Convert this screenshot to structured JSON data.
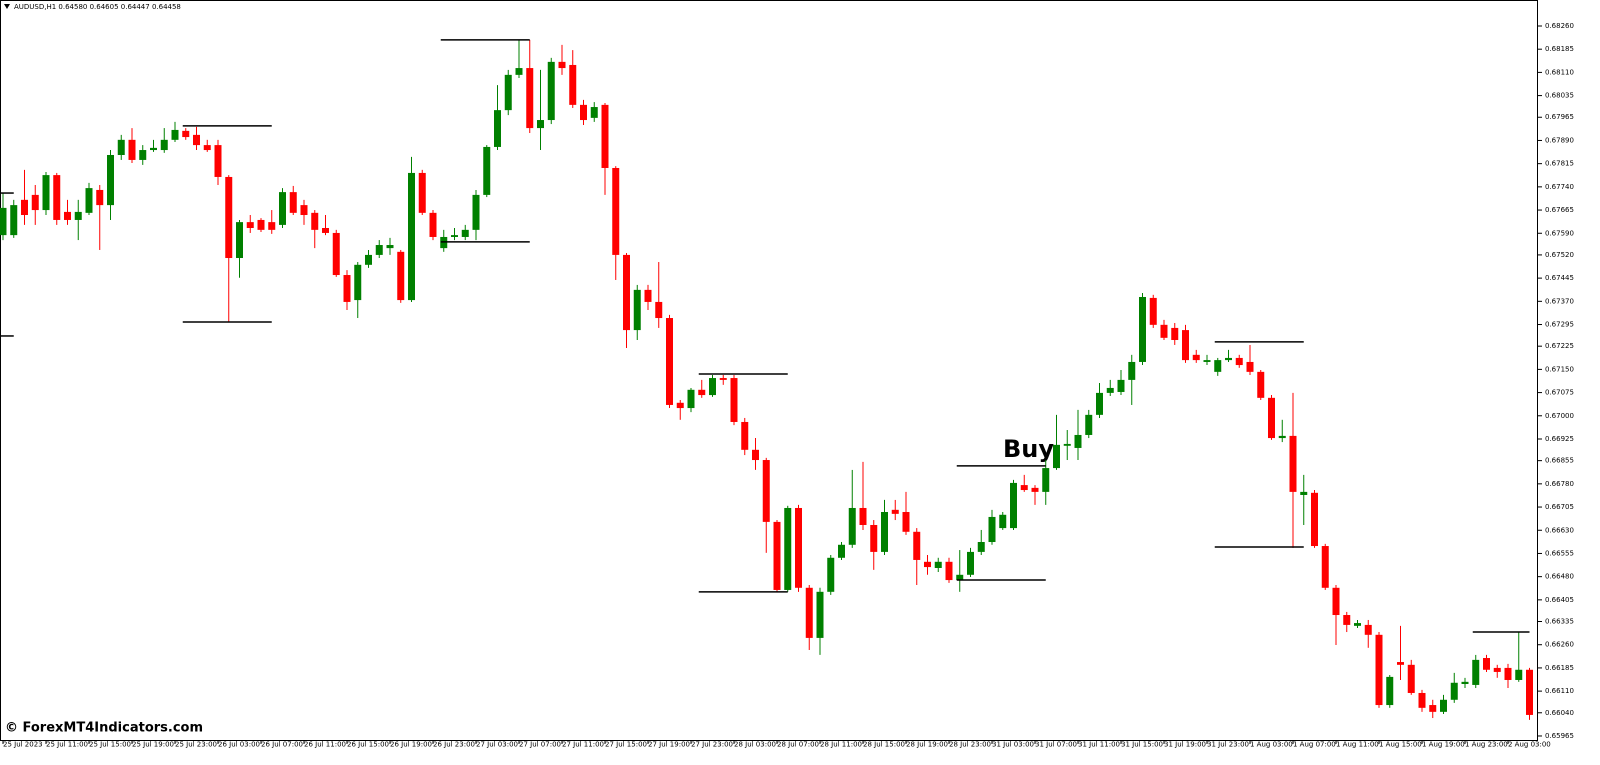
{
  "chart_data": {
    "type": "candlestick",
    "title": "AUDUSD,H1  0.64580 0.64605 0.64447 0.64458",
    "annotation": "Buy",
    "watermark": "© ForexMT4Indicators.com",
    "up_color": "#008000",
    "down_color": "#ff0000",
    "level_color": "#000000",
    "grid": false,
    "categories": [
      "25 Jul 2023",
      null,
      null,
      null,
      "25 Jul 11:00",
      null,
      null,
      null,
      "25 Jul 15:00",
      null,
      null,
      null,
      "25 Jul 19:00",
      null,
      null,
      null,
      "25 Jul 23:00",
      null,
      null,
      null,
      "26 Jul 03:00",
      null,
      null,
      null,
      "26 Jul 07:00",
      null,
      null,
      null,
      "26 Jul 11:00",
      null,
      null,
      null,
      "26 Jul 15:00",
      null,
      null,
      null,
      "26 Jul 19:00",
      null,
      null,
      null,
      "26 Jul 23:00",
      null,
      null,
      null,
      "27 Jul 03:00",
      null,
      null,
      null,
      "27 Jul 07:00",
      null,
      null,
      null,
      "27 Jul 11:00",
      null,
      null,
      null,
      "27 Jul 15:00",
      null,
      null,
      null,
      "27 Jul 19:00",
      null,
      null,
      null,
      "27 Jul 23:00",
      null,
      null,
      null,
      "28 Jul 03:00",
      null,
      null,
      null,
      "28 Jul 07:00",
      null,
      null,
      null,
      "28 Jul 11:00",
      null,
      null,
      null,
      "28 Jul 15:00",
      null,
      null,
      null,
      "28 Jul 19:00",
      null,
      null,
      null,
      "28 Jul 23:00",
      null,
      null,
      null,
      "31 Jul 03:00",
      null,
      null,
      null,
      "31 Jul 07:00",
      null,
      null,
      null,
      "31 Jul 11:00",
      null,
      null,
      null,
      "31 Jul 15:00",
      null,
      null,
      null,
      "31 Jul 19:00",
      null,
      null,
      null,
      "31 Jul 23:00",
      null,
      null,
      null,
      "1 Aug 03:00",
      null,
      null,
      null,
      "1 Aug 07:00",
      null,
      null,
      null,
      "1 Aug 11:00",
      null,
      null,
      null,
      "1 Aug 15:00",
      null,
      null,
      null,
      "1 Aug 19:00",
      null,
      null,
      null,
      "1 Aug 23:00",
      null,
      null,
      null,
      "2 Aug 03:00",
      null,
      null
    ],
    "open": [
      0.67584,
      0.67584,
      0.67698,
      0.67714,
      0.67665,
      0.67778,
      0.67659,
      0.67633,
      0.67656,
      0.6773,
      0.67681,
      0.67843,
      0.67892,
      0.67827,
      0.67859,
      0.67859,
      0.67892,
      0.67921,
      0.67908,
      0.67875,
      0.67875,
      0.67772,
      0.6751,
      0.67626,
      0.67633,
      0.67626,
      0.67617,
      0.67723,
      0.67681,
      0.67656,
      0.67607,
      0.67591,
      0.67455,
      0.67374,
      0.67488,
      0.6752,
      0.67542,
      0.6753,
      0.67374,
      0.67785,
      0.67656,
      0.67542,
      0.67578,
      0.67578,
      0.67601,
      0.67714,
      0.67869,
      0.67988,
      0.68102,
      0.68124,
      0.6793,
      0.67956,
      0.68144,
      0.68134,
      0.68005,
      0.67963,
      0.68005,
      0.67801,
      0.6752,
      0.67277,
      0.67407,
      0.67368,
      0.67316,
      0.67042,
      0.67025,
      0.67084,
      0.67067,
      0.67122,
      0.67122,
      0.6698,
      0.6689,
      0.66857,
      0.66657,
      0.66437,
      0.66702,
      0.66444,
      0.66282,
      0.66431,
      0.66541,
      0.66583,
      0.66702,
      0.66647,
      0.6656,
      0.66696,
      0.66689,
      0.66625,
      0.66528,
      0.66508,
      0.66528,
      0.66469,
      0.66486,
      0.6656,
      0.66592,
      0.66637,
      0.66637,
      0.66776,
      0.66767,
      0.66754,
      0.66831,
      0.66903,
      0.66896,
      0.66938,
      0.67003,
      0.67074,
      0.67077,
      0.67116,
      0.67174,
      0.67381,
      0.67294,
      0.67284,
      0.67277,
      0.67197,
      0.67174,
      0.67142,
      0.6718,
      0.67187,
      0.67174,
      0.67142,
      0.67058,
      0.66928,
      0.66935,
      0.66744,
      0.66751,
      0.66579,
      0.66444,
      0.66356,
      0.66321,
      0.66324,
      0.66292,
      0.66065,
      0.66204,
      0.66195,
      0.66104,
      0.66065,
      0.66043,
      0.66082,
      0.66133,
      0.6613,
      0.66217,
      0.66185,
      0.66185,
      0.66146,
      0.66179
    ],
    "high": [
      0.6772,
      0.67698,
      0.67795,
      0.67746,
      0.67788,
      0.67785,
      0.67698,
      0.67698,
      0.67753,
      0.67746,
      0.67859,
      0.67908,
      0.6793,
      0.67875,
      0.67892,
      0.6793,
      0.6795,
      0.6793,
      0.67934,
      0.67892,
      0.67892,
      0.67778,
      0.67633,
      0.67649,
      0.67639,
      0.67665,
      0.67736,
      0.67743,
      0.67698,
      0.67665,
      0.67649,
      0.67601,
      0.67471,
      0.67497,
      0.67536,
      0.67568,
      0.67575,
      0.67536,
      0.67837,
      0.67795,
      0.67665,
      0.67601,
      0.67607,
      0.67617,
      0.6773,
      0.67875,
      0.68069,
      0.68118,
      0.68215,
      0.68215,
      0.68118,
      0.68157,
      0.68199,
      0.68182,
      0.68021,
      0.68014,
      0.68011,
      0.67807,
      0.67526,
      0.67423,
      0.67423,
      0.67497,
      0.67326,
      0.67051,
      0.6709,
      0.67116,
      0.67132,
      0.67132,
      0.67132,
      0.66993,
      0.66928,
      0.66864,
      0.66663,
      0.66709,
      0.66712,
      0.66453,
      0.66444,
      0.6655,
      0.66592,
      0.66825,
      0.66851,
      0.66663,
      0.66728,
      0.66728,
      0.66754,
      0.66637,
      0.6655,
      0.66541,
      0.66541,
      0.66566,
      0.66573,
      0.66631,
      0.66696,
      0.66689,
      0.66793,
      0.66809,
      0.66776,
      0.66857,
      0.67003,
      0.66954,
      0.67019,
      0.67019,
      0.67106,
      0.67116,
      0.67148,
      0.67197,
      0.67397,
      0.67391,
      0.6731,
      0.673,
      0.67294,
      0.67213,
      0.67197,
      0.67187,
      0.67213,
      0.67197,
      0.67229,
      0.67148,
      0.67067,
      0.66987,
      0.67074,
      0.66809,
      0.6676,
      0.66586,
      0.66453,
      0.66366,
      0.6634,
      0.6634,
      0.66301,
      0.66162,
      0.66321,
      0.66211,
      0.66114,
      0.66082,
      0.66098,
      0.66169,
      0.66153,
      0.66227,
      0.66227,
      0.66195,
      0.66198,
      0.66301,
      0.66185
    ],
    "low": [
      0.67568,
      0.67575,
      0.67617,
      0.67617,
      0.67649,
      0.67617,
      0.67617,
      0.67568,
      0.67649,
      0.67536,
      0.67633,
      0.67827,
      0.67817,
      0.67811,
      0.67853,
      0.6785,
      0.67885,
      0.67892,
      0.67859,
      0.67853,
      0.67746,
      0.67303,
      0.67446,
      0.67591,
      0.67594,
      0.67588,
      0.67607,
      0.67649,
      0.67617,
      0.67542,
      0.67584,
      0.67449,
      0.67342,
      0.67316,
      0.67478,
      0.6751,
      0.6752,
      0.67365,
      0.67368,
      0.67649,
      0.67568,
      0.6753,
      0.67568,
      0.67568,
      0.67568,
      0.67707,
      0.67859,
      0.67972,
      0.68092,
      0.67914,
      0.67859,
      0.67943,
      0.68102,
      0.67995,
      0.6794,
      0.6795,
      0.67714,
      0.67439,
      0.67219,
      0.67245,
      0.67342,
      0.67284,
      0.67025,
      0.66987,
      0.67012,
      0.67058,
      0.67061,
      0.671,
      0.6697,
      0.66873,
      0.66825,
      0.66557,
      0.66431,
      0.66431,
      0.66431,
      0.66243,
      0.66227,
      0.66421,
      0.66534,
      0.66573,
      0.66631,
      0.66502,
      0.6655,
      0.66663,
      0.66615,
      0.66453,
      0.66486,
      0.66495,
      0.6646,
      0.66431,
      0.66479,
      0.6655,
      0.66583,
      0.66631,
      0.66631,
      0.66754,
      0.66712,
      0.66712,
      0.66825,
      0.66857,
      0.66857,
      0.66928,
      0.66993,
      0.67064,
      0.67067,
      0.67035,
      0.67164,
      0.67284,
      0.67245,
      0.67229,
      0.67171,
      0.67171,
      0.67164,
      0.67129,
      0.67174,
      0.67155,
      0.67132,
      0.67051,
      0.66922,
      0.66915,
      0.66573,
      0.66647,
      0.66573,
      0.66437,
      0.66259,
      0.66301,
      0.66314,
      0.6625,
      0.66056,
      0.66056,
      0.66146,
      0.66098,
      0.66043,
      0.66023,
      0.66036,
      0.66072,
      0.6612,
      0.6612,
      0.66172,
      0.66153,
      0.6612,
      0.6614,
      0.66017
    ],
    "close": [
      0.67672,
      0.67681,
      0.67649,
      0.67665,
      0.67778,
      0.67633,
      0.67633,
      0.67659,
      0.67736,
      0.67681,
      0.67843,
      0.67892,
      0.67827,
      0.67859,
      0.67866,
      0.67892,
      0.67924,
      0.67901,
      0.67875,
      0.67859,
      0.67772,
      0.6751,
      0.67626,
      0.67607,
      0.67601,
      0.67601,
      0.67723,
      0.67656,
      0.67649,
      0.67601,
      0.67591,
      0.67455,
      0.67368,
      0.67488,
      0.6752,
      0.67552,
      0.67552,
      0.67374,
      0.67785,
      0.67656,
      0.67578,
      0.67578,
      0.67584,
      0.67601,
      0.67714,
      0.67869,
      0.67988,
      0.68102,
      0.68124,
      0.6793,
      0.67956,
      0.68144,
      0.68124,
      0.68005,
      0.67956,
      0.67998,
      0.67801,
      0.6752,
      0.67277,
      0.67407,
      0.67368,
      0.67316,
      0.67035,
      0.67025,
      0.67084,
      0.67067,
      0.67122,
      0.67116,
      0.6698,
      0.6689,
      0.66857,
      0.66657,
      0.66437,
      0.66702,
      0.66444,
      0.66282,
      0.66431,
      0.66541,
      0.66583,
      0.66702,
      0.66647,
      0.6656,
      0.66689,
      0.66683,
      0.66625,
      0.66534,
      0.66511,
      0.66528,
      0.66469,
      0.66486,
      0.6656,
      0.66592,
      0.66673,
      0.6668,
      0.66783,
      0.6676,
      0.66754,
      0.66831,
      0.66906,
      0.66909,
      0.66938,
      0.67003,
      0.67074,
      0.6709,
      0.67116,
      0.67174,
      0.67384,
      0.67294,
      0.67252,
      0.67245,
      0.6718,
      0.6718,
      0.6718,
      0.6718,
      0.67187,
      0.67164,
      0.67142,
      0.67058,
      0.66928,
      0.66935,
      0.66754,
      0.66754,
      0.66579,
      0.66444,
      0.66356,
      0.66324,
      0.6633,
      0.66292,
      0.66065,
      0.66156,
      0.66195,
      0.66104,
      0.66056,
      0.66043,
      0.66082,
      0.66137,
      0.6614,
      0.66211,
      0.66179,
      0.66172,
      0.66146,
      0.66179,
      0.66033
    ],
    "levels": [
      {
        "value": 0.6772,
        "start": 0,
        "end": 1
      },
      {
        "value": 0.67258,
        "start": 0,
        "end": 1
      },
      {
        "value": 0.67937,
        "start": 17,
        "end": 25
      },
      {
        "value": 0.67303,
        "start": 17,
        "end": 25
      },
      {
        "value": 0.68215,
        "start": 41,
        "end": 49
      },
      {
        "value": 0.67562,
        "start": 41,
        "end": 49
      },
      {
        "value": 0.67135,
        "start": 65,
        "end": 73
      },
      {
        "value": 0.66431,
        "start": 65,
        "end": 73
      },
      {
        "value": 0.66838,
        "start": 89,
        "end": 97
      },
      {
        "value": 0.66469,
        "start": 89,
        "end": 97
      },
      {
        "value": 0.67239,
        "start": 113,
        "end": 121
      },
      {
        "value": 0.66576,
        "start": 113,
        "end": 121
      },
      {
        "value": 0.66301,
        "start": 137,
        "end": 142
      }
    ],
    "ylim": [
      0.65952,
      0.68344
    ],
    "yticks": [
      {
        "value": 0.6826,
        "label": "0.68260"
      },
      0.68185,
      {
        "value": 0.6811,
        "label": "0.68110"
      },
      0.68035,
      0.67965,
      {
        "value": 0.6789,
        "label": "0.67890"
      },
      0.67815,
      {
        "value": 0.6774,
        "label": "0.67740"
      },
      0.67665,
      {
        "value": 0.6759,
        "label": "0.67590"
      },
      {
        "value": 0.6752,
        "label": "0.67520"
      },
      0.67445,
      {
        "value": 0.6737,
        "label": "0.67370"
      },
      0.67295,
      0.67225,
      {
        "value": 0.6715,
        "label": "0.67150"
      },
      0.67075,
      {
        "value": 0.67,
        "label": "0.67000"
      },
      0.66925,
      0.66855,
      {
        "value": 0.6678,
        "label": "0.66780"
      },
      0.66705,
      {
        "value": 0.6663,
        "label": "0.66630"
      },
      0.66555,
      {
        "value": 0.6648,
        "label": "0.66480"
      },
      0.66405,
      0.66335,
      {
        "value": 0.6626,
        "label": "0.66260"
      },
      0.66185,
      {
        "value": 0.6611,
        "label": "0.66110"
      },
      {
        "value": 0.6604,
        "label": "0.66040"
      },
      0.65965
    ]
  }
}
